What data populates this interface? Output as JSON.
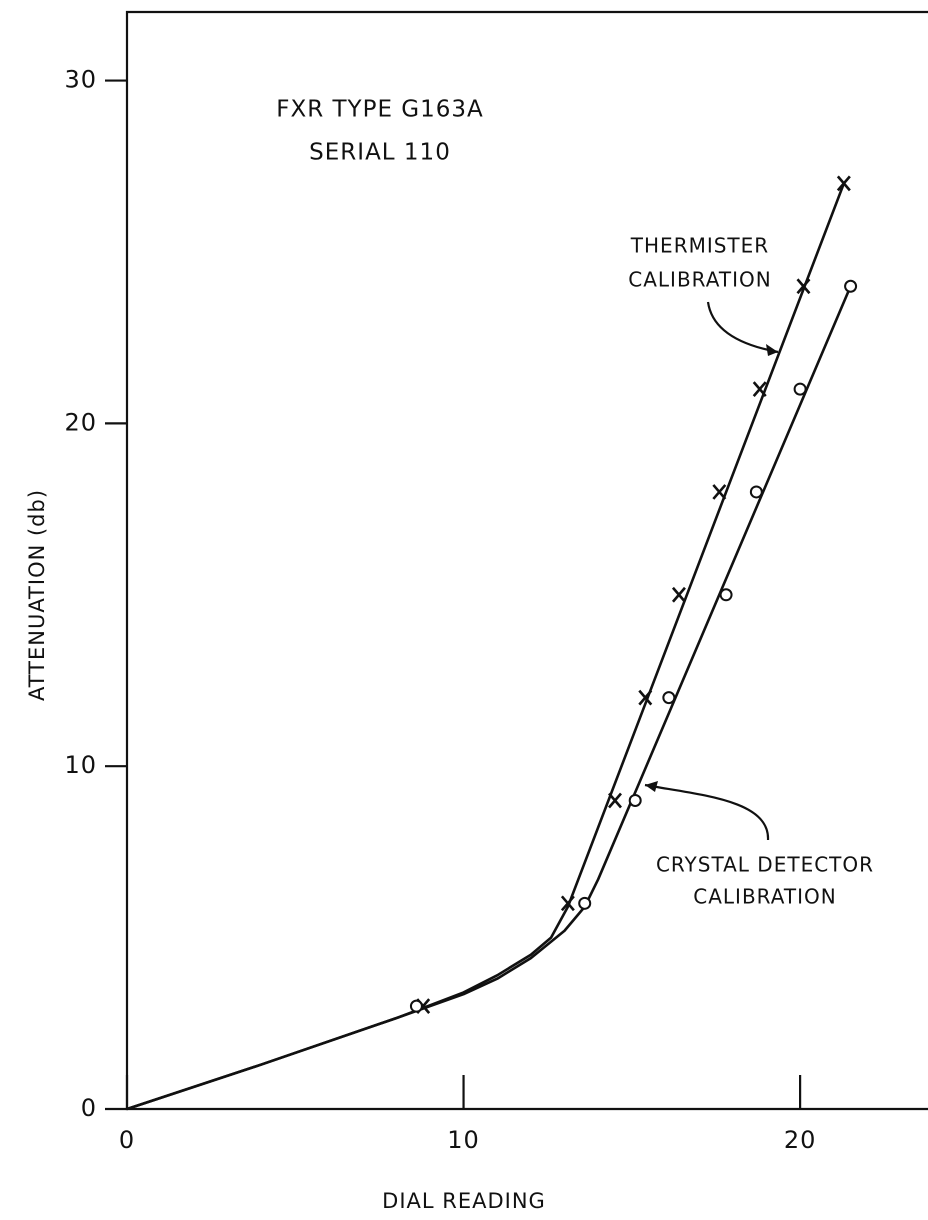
{
  "chart_data": {
    "type": "scatter",
    "xlabel": "DIAL READING",
    "ylabel": "ATTENUATION (db)",
    "xlim": [
      0,
      23.8
    ],
    "ylim": [
      0,
      32
    ],
    "xticks": [
      0,
      10,
      20
    ],
    "yticks": [
      0,
      10,
      20,
      30
    ],
    "annotations": [
      "FXR TYPE G163A",
      "SERIAL 110",
      "THERMISTER",
      "CALIBRATION",
      "CRYSTAL DETECTOR",
      "CALIBRATION"
    ],
    "series": [
      {
        "marker": "x",
        "color": "#111",
        "x": [
          8.8,
          13.1,
          14.5,
          15.4,
          16.4,
          17.6,
          18.8,
          20.1,
          21.3
        ],
        "values": [
          3,
          6,
          9,
          12,
          15,
          18,
          21,
          24,
          27
        ],
        "fit_x": [
          0,
          4,
          8,
          10,
          11,
          12,
          12.6,
          13.1,
          21.3
        ],
        "fit_values": [
          0,
          1.3,
          2.65,
          3.4,
          3.9,
          4.5,
          5.0,
          5.9,
          27
        ]
      },
      {
        "marker": "o",
        "color": "#111",
        "x": [
          8.6,
          13.6,
          15.1,
          16.1,
          17.8,
          18.7,
          20.0,
          21.5
        ],
        "values": [
          3,
          6,
          9,
          12,
          15,
          18,
          21,
          24
        ],
        "fit_x": [
          0,
          4,
          8,
          10,
          11,
          12,
          13,
          13.6,
          14,
          21.5
        ],
        "fit_values": [
          0,
          1.3,
          2.65,
          3.35,
          3.8,
          4.4,
          5.2,
          5.9,
          6.7,
          24
        ]
      }
    ]
  }
}
